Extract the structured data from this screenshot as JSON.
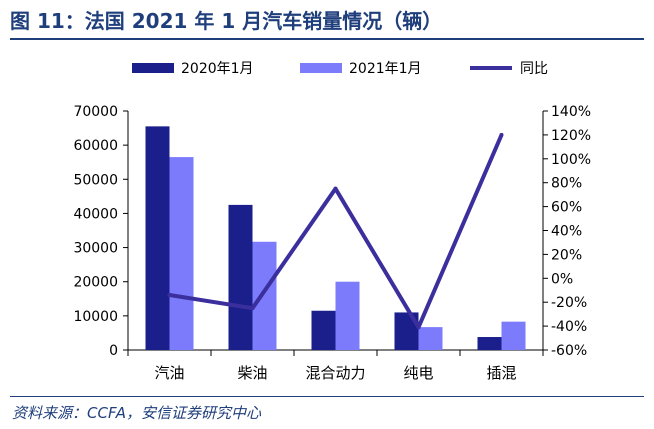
{
  "page": {
    "title": "图 11：法国 2021 年 1 月汽车销量情况（辆）",
    "source": "资料来源：CCFA，安信证券研究中心"
  },
  "colors": {
    "series_2020": "#1A1F8C",
    "series_2021": "#7B7BFB",
    "yoy_line": "#3B2F9E",
    "accent": "#1F3E7C"
  },
  "chart_data": {
    "type": "bar",
    "categories": [
      "汽油",
      "柴油",
      "混合动力",
      "纯电",
      "插混"
    ],
    "series": [
      {
        "name": "2020年1月",
        "type": "bar",
        "axis": "left",
        "values": [
          65500,
          42500,
          11500,
          11000,
          3800
        ]
      },
      {
        "name": "2021年1月",
        "type": "bar",
        "axis": "left",
        "values": [
          56500,
          31700,
          20000,
          6700,
          8300
        ]
      },
      {
        "name": "同比",
        "type": "line",
        "axis": "right",
        "unit": "%",
        "values": [
          -14,
          -25,
          75,
          -41,
          120
        ]
      }
    ],
    "ylim": [
      0,
      70000
    ],
    "yticks": [
      "0",
      "10000",
      "20000",
      "30000",
      "40000",
      "50000",
      "60000",
      "70000"
    ],
    "y2lim": [
      -60,
      140
    ],
    "y2ticks": [
      "-60%",
      "-40%",
      "-20%",
      "0%",
      "20%",
      "40%",
      "60%",
      "80%",
      "100%",
      "120%",
      "140%"
    ],
    "legend_position": "top",
    "grid": false
  }
}
